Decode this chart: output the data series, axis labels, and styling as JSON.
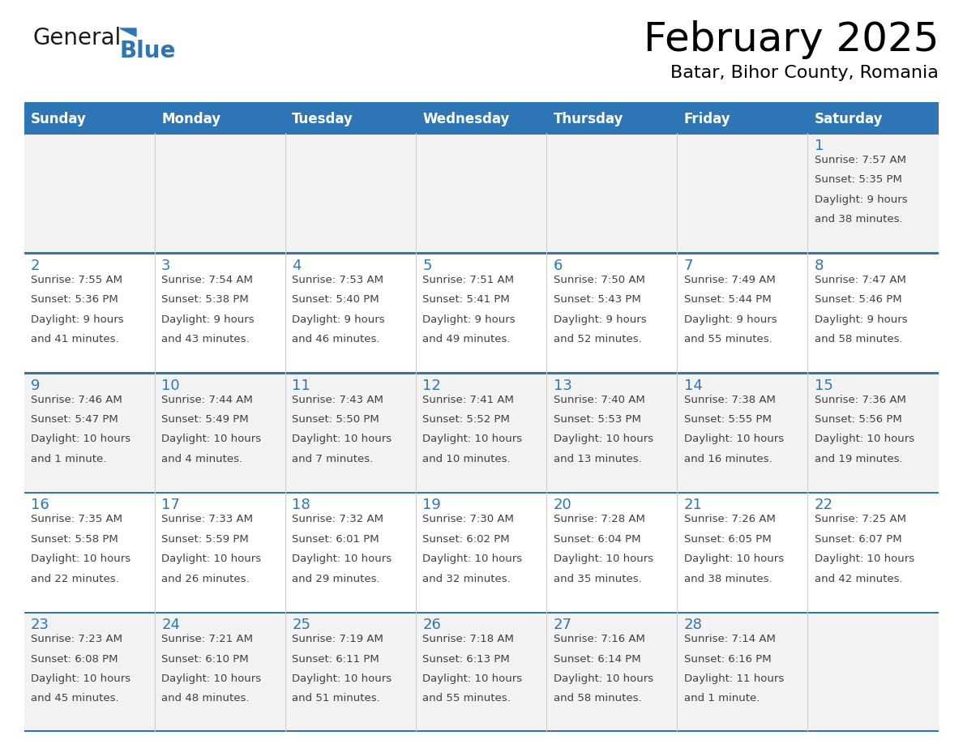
{
  "title": "February 2025",
  "subtitle": "Batar, Bihor County, Romania",
  "days_of_week": [
    "Sunday",
    "Monday",
    "Tuesday",
    "Wednesday",
    "Thursday",
    "Friday",
    "Saturday"
  ],
  "header_bg": "#2E75B6",
  "header_text": "#FFFFFF",
  "row_bg_light": "#F2F2F2",
  "row_bg_white": "#FFFFFF",
  "day_number_color": "#2E75B6",
  "text_color": "#404040",
  "border_color": "#2E75B6",
  "calendar_data": [
    {
      "day": 1,
      "col": 6,
      "row": 0,
      "sunrise": "7:57 AM",
      "sunset": "5:35 PM",
      "daylight_line1": "Daylight: 9 hours",
      "daylight_line2": "and 38 minutes."
    },
    {
      "day": 2,
      "col": 0,
      "row": 1,
      "sunrise": "7:55 AM",
      "sunset": "5:36 PM",
      "daylight_line1": "Daylight: 9 hours",
      "daylight_line2": "and 41 minutes."
    },
    {
      "day": 3,
      "col": 1,
      "row": 1,
      "sunrise": "7:54 AM",
      "sunset": "5:38 PM",
      "daylight_line1": "Daylight: 9 hours",
      "daylight_line2": "and 43 minutes."
    },
    {
      "day": 4,
      "col": 2,
      "row": 1,
      "sunrise": "7:53 AM",
      "sunset": "5:40 PM",
      "daylight_line1": "Daylight: 9 hours",
      "daylight_line2": "and 46 minutes."
    },
    {
      "day": 5,
      "col": 3,
      "row": 1,
      "sunrise": "7:51 AM",
      "sunset": "5:41 PM",
      "daylight_line1": "Daylight: 9 hours",
      "daylight_line2": "and 49 minutes."
    },
    {
      "day": 6,
      "col": 4,
      "row": 1,
      "sunrise": "7:50 AM",
      "sunset": "5:43 PM",
      "daylight_line1": "Daylight: 9 hours",
      "daylight_line2": "and 52 minutes."
    },
    {
      "day": 7,
      "col": 5,
      "row": 1,
      "sunrise": "7:49 AM",
      "sunset": "5:44 PM",
      "daylight_line1": "Daylight: 9 hours",
      "daylight_line2": "and 55 minutes."
    },
    {
      "day": 8,
      "col": 6,
      "row": 1,
      "sunrise": "7:47 AM",
      "sunset": "5:46 PM",
      "daylight_line1": "Daylight: 9 hours",
      "daylight_line2": "and 58 minutes."
    },
    {
      "day": 9,
      "col": 0,
      "row": 2,
      "sunrise": "7:46 AM",
      "sunset": "5:47 PM",
      "daylight_line1": "Daylight: 10 hours",
      "daylight_line2": "and 1 minute."
    },
    {
      "day": 10,
      "col": 1,
      "row": 2,
      "sunrise": "7:44 AM",
      "sunset": "5:49 PM",
      "daylight_line1": "Daylight: 10 hours",
      "daylight_line2": "and 4 minutes."
    },
    {
      "day": 11,
      "col": 2,
      "row": 2,
      "sunrise": "7:43 AM",
      "sunset": "5:50 PM",
      "daylight_line1": "Daylight: 10 hours",
      "daylight_line2": "and 7 minutes."
    },
    {
      "day": 12,
      "col": 3,
      "row": 2,
      "sunrise": "7:41 AM",
      "sunset": "5:52 PM",
      "daylight_line1": "Daylight: 10 hours",
      "daylight_line2": "and 10 minutes."
    },
    {
      "day": 13,
      "col": 4,
      "row": 2,
      "sunrise": "7:40 AM",
      "sunset": "5:53 PM",
      "daylight_line1": "Daylight: 10 hours",
      "daylight_line2": "and 13 minutes."
    },
    {
      "day": 14,
      "col": 5,
      "row": 2,
      "sunrise": "7:38 AM",
      "sunset": "5:55 PM",
      "daylight_line1": "Daylight: 10 hours",
      "daylight_line2": "and 16 minutes."
    },
    {
      "day": 15,
      "col": 6,
      "row": 2,
      "sunrise": "7:36 AM",
      "sunset": "5:56 PM",
      "daylight_line1": "Daylight: 10 hours",
      "daylight_line2": "and 19 minutes."
    },
    {
      "day": 16,
      "col": 0,
      "row": 3,
      "sunrise": "7:35 AM",
      "sunset": "5:58 PM",
      "daylight_line1": "Daylight: 10 hours",
      "daylight_line2": "and 22 minutes."
    },
    {
      "day": 17,
      "col": 1,
      "row": 3,
      "sunrise": "7:33 AM",
      "sunset": "5:59 PM",
      "daylight_line1": "Daylight: 10 hours",
      "daylight_line2": "and 26 minutes."
    },
    {
      "day": 18,
      "col": 2,
      "row": 3,
      "sunrise": "7:32 AM",
      "sunset": "6:01 PM",
      "daylight_line1": "Daylight: 10 hours",
      "daylight_line2": "and 29 minutes."
    },
    {
      "day": 19,
      "col": 3,
      "row": 3,
      "sunrise": "7:30 AM",
      "sunset": "6:02 PM",
      "daylight_line1": "Daylight: 10 hours",
      "daylight_line2": "and 32 minutes."
    },
    {
      "day": 20,
      "col": 4,
      "row": 3,
      "sunrise": "7:28 AM",
      "sunset": "6:04 PM",
      "daylight_line1": "Daylight: 10 hours",
      "daylight_line2": "and 35 minutes."
    },
    {
      "day": 21,
      "col": 5,
      "row": 3,
      "sunrise": "7:26 AM",
      "sunset": "6:05 PM",
      "daylight_line1": "Daylight: 10 hours",
      "daylight_line2": "and 38 minutes."
    },
    {
      "day": 22,
      "col": 6,
      "row": 3,
      "sunrise": "7:25 AM",
      "sunset": "6:07 PM",
      "daylight_line1": "Daylight: 10 hours",
      "daylight_line2": "and 42 minutes."
    },
    {
      "day": 23,
      "col": 0,
      "row": 4,
      "sunrise": "7:23 AM",
      "sunset": "6:08 PM",
      "daylight_line1": "Daylight: 10 hours",
      "daylight_line2": "and 45 minutes."
    },
    {
      "day": 24,
      "col": 1,
      "row": 4,
      "sunrise": "7:21 AM",
      "sunset": "6:10 PM",
      "daylight_line1": "Daylight: 10 hours",
      "daylight_line2": "and 48 minutes."
    },
    {
      "day": 25,
      "col": 2,
      "row": 4,
      "sunrise": "7:19 AM",
      "sunset": "6:11 PM",
      "daylight_line1": "Daylight: 10 hours",
      "daylight_line2": "and 51 minutes."
    },
    {
      "day": 26,
      "col": 3,
      "row": 4,
      "sunrise": "7:18 AM",
      "sunset": "6:13 PM",
      "daylight_line1": "Daylight: 10 hours",
      "daylight_line2": "and 55 minutes."
    },
    {
      "day": 27,
      "col": 4,
      "row": 4,
      "sunrise": "7:16 AM",
      "sunset": "6:14 PM",
      "daylight_line1": "Daylight: 10 hours",
      "daylight_line2": "and 58 minutes."
    },
    {
      "day": 28,
      "col": 5,
      "row": 4,
      "sunrise": "7:14 AM",
      "sunset": "6:16 PM",
      "daylight_line1": "Daylight: 11 hours",
      "daylight_line2": "and 1 minute."
    }
  ],
  "logo_text_general": "General",
  "logo_text_blue": "Blue",
  "logo_color_general": "#1a1a1a",
  "logo_color_blue": "#2E75B6",
  "logo_triangle_color": "#2E75B6",
  "figsize": [
    11.88,
    9.18
  ],
  "dpi": 100
}
